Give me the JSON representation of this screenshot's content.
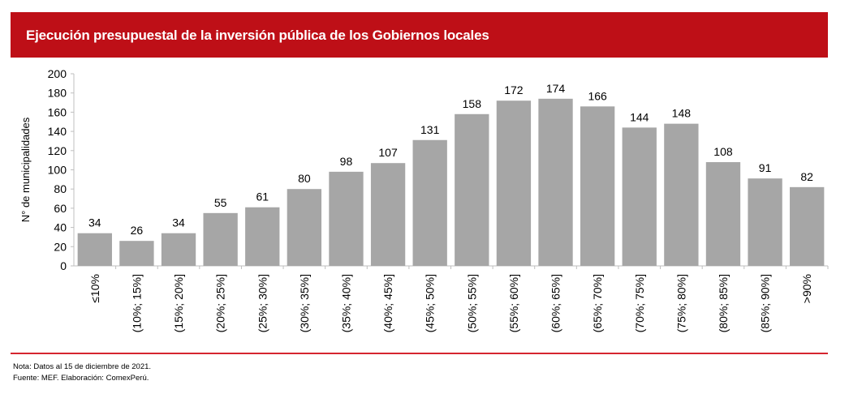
{
  "title": "Ejecución presupuestal de la inversión pública de los Gobiernos locales",
  "chart_data": {
    "type": "bar",
    "title": "Ejecución presupuestal de la inversión pública de los Gobiernos locales",
    "xlabel": "",
    "ylabel": "N° de municipalidades",
    "ylim": [
      0,
      200
    ],
    "yticks": [
      0,
      20,
      40,
      60,
      80,
      100,
      120,
      140,
      160,
      180,
      200
    ],
    "categories": [
      "≤10%",
      "(10%; 15%]",
      "(15%; 20%]",
      "(20%; 25%]",
      "(25%; 30%]",
      "(30%; 35%]",
      "(35%; 40%]",
      "(40%; 45%]",
      "(45%; 50%]",
      "(50%; 55%]",
      "(55%; 60%]",
      "(60%; 65%]",
      "(65%; 70%]",
      "(70%; 75%]",
      "(75%; 80%]",
      "(80%; 85%]",
      "(85%; 90%]",
      ">90%"
    ],
    "values": [
      34,
      26,
      34,
      55,
      61,
      80,
      98,
      107,
      131,
      158,
      172,
      174,
      166,
      144,
      148,
      108,
      91,
      82
    ],
    "bar_color": "#a6a6a6",
    "grid": false,
    "legend": "none"
  },
  "notes": {
    "nota": "Nota: Datos al 15 de diciembre de 2021.",
    "fuente": "Fuente: MEF. Elaboración: ComexPerú."
  },
  "colors": {
    "banner": "#be0f17",
    "rule": "#d5252f"
  }
}
